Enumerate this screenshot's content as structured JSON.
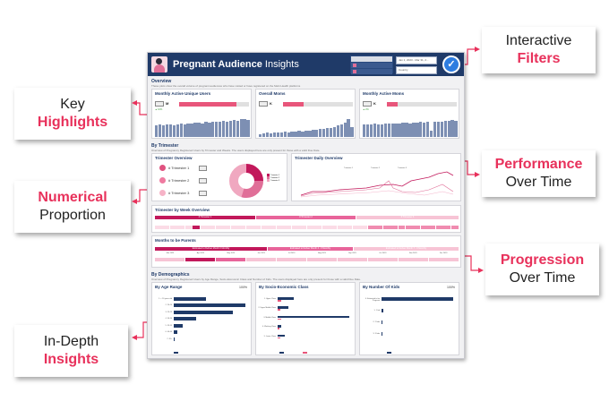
{
  "callouts": [
    {
      "id": "interactive-filters",
      "line1": "Interactive",
      "line2": "Filters",
      "highlight_line": 2
    },
    {
      "id": "key-highlights",
      "line1": "Key",
      "line2": "Highlights",
      "highlight_line": 2
    },
    {
      "id": "performance-over-time",
      "line1": "Performance",
      "line2": "Over Time",
      "highlight_line": 1
    },
    {
      "id": "numerical-proportion",
      "line1": "Numerical",
      "line2": "Proportion",
      "highlight_line": 1
    },
    {
      "id": "progression-over-time",
      "line1": "Progression",
      "line2": "Over Time",
      "highlight_line": 1
    },
    {
      "id": "in-depth-insights",
      "line1": "In-Depth",
      "line2": "Insights",
      "highlight_line": 2
    }
  ],
  "colors": {
    "accent": "#e8315b",
    "navy": "#1f3a68",
    "pink_dark": "#c2185b",
    "pink_mid": "#e8649a",
    "pink_light": "#f4b6cc",
    "bar_grey_blue": "#7d8fb3"
  },
  "dashboard": {
    "title_bold": "Pregnant Audience",
    "title_light": "Insights",
    "member_table": {
      "header": [
        "Member Type",
        "People"
      ],
      "rows": [
        "Subscriber",
        "Member"
      ]
    },
    "filters": {
      "date_range": "Jan 1, 2023 - Mar 31, 2...",
      "country": "Country"
    },
    "apply_icon": "check-icon",
    "overview": {
      "title": "Overview",
      "desc": "These plots show the overall volume of pregnant audiences who have visited or have registered on the Mebi Health platforms",
      "cards": [
        {
          "title": "Monthly Active Unique Users",
          "value": "M",
          "delta": "▲ 16%",
          "progress": 0.82
        },
        {
          "title": "Overall Moms",
          "value": "K",
          "delta": "",
          "progress": 0.3
        },
        {
          "title": "Monthly Active Moms",
          "value": "K",
          "delta": "▲ 2%",
          "progress": 0.16
        }
      ]
    },
    "by_trimester": {
      "title": "By Trimester",
      "desc": "Overview of Pregnancy Registered Users by Trimester and Weeks. The users displayed here are only present for those with a valid Due Date.",
      "overview_card": {
        "title": "Trimester Overview",
        "rows": [
          {
            "label": "# Trimester 1",
            "icon": "embryo-icon"
          },
          {
            "label": "# Trimester 2",
            "icon": "fetus-icon"
          },
          {
            "label": "# Trimester 3",
            "icon": "baby-icon"
          }
        ],
        "legend": [
          "Trimester 1",
          "Trimester 2",
          "Trimester 3"
        ]
      },
      "daily_card": {
        "title": "Trimester Daily Overview",
        "legend": [
          "Trimester 1",
          "Trimester 2",
          "Trimester 3"
        ]
      }
    },
    "by_week": {
      "title": "Trimester by Week Overview",
      "bands": [
        "# Trimester 1",
        "# Trimester 2",
        "# Trimester 3"
      ]
    },
    "months_to_parents": {
      "title": "Months to be Parents",
      "bands": [
        "Estimated to Deliver Month 0 Monthly",
        "Estimated to Deliver Month 4 - 6 Monthly",
        "Estimated to Deliver Month 7 - 9 Monthly"
      ],
      "months": [
        "Mar 2023",
        "Apr 2023",
        "May 2023",
        "Jun 2023",
        "Jul 2023",
        "Aug 2023",
        "Sep 2023",
        "Oct 2023",
        "Nov 2023",
        "Dec 2023"
      ]
    },
    "demographics": {
      "title": "By Demographics",
      "desc": "Overview of Pregnancy Registered Users by Age Range, Socio-Economic Class and Number of Kids. The users displayed here are only present for those with a valid Due Date.",
      "age": {
        "title": "By Age Range",
        "pct": "100%",
        "labels": [
          "1. < 20 years old",
          "2. 20-24",
          "3. 25-29",
          "4. 30-34",
          "5. 35-39",
          "6. 40-44",
          "7. 45+"
        ],
        "values": [
          35,
          78,
          64,
          24,
          10,
          4,
          1
        ]
      },
      "sec": {
        "title": "By Socio-Economic Class",
        "labels": [
          "1. Upper Class",
          "2. Upper Middle Class",
          "3. Middle Class",
          "4. Working Class",
          "5. Lower Class"
        ],
        "values": [
          22,
          15,
          100,
          5,
          10
        ],
        "values2": [
          4,
          3,
          4,
          2,
          3
        ],
        "legend": [
          "Pregnant Moms",
          "Avg. Income per Month (Guide)"
        ]
      },
      "kids": {
        "title": "By Number Of Kids",
        "pct": "100%",
        "labels": [
          "0. Estimated to be Pregnant",
          "1. 1 kid",
          "2. 2 kids",
          "3. 3 kids"
        ],
        "values": [
          100,
          2,
          1,
          0.5
        ],
        "legend": [
          "Pregnant Registered Users"
        ]
      }
    }
  }
}
